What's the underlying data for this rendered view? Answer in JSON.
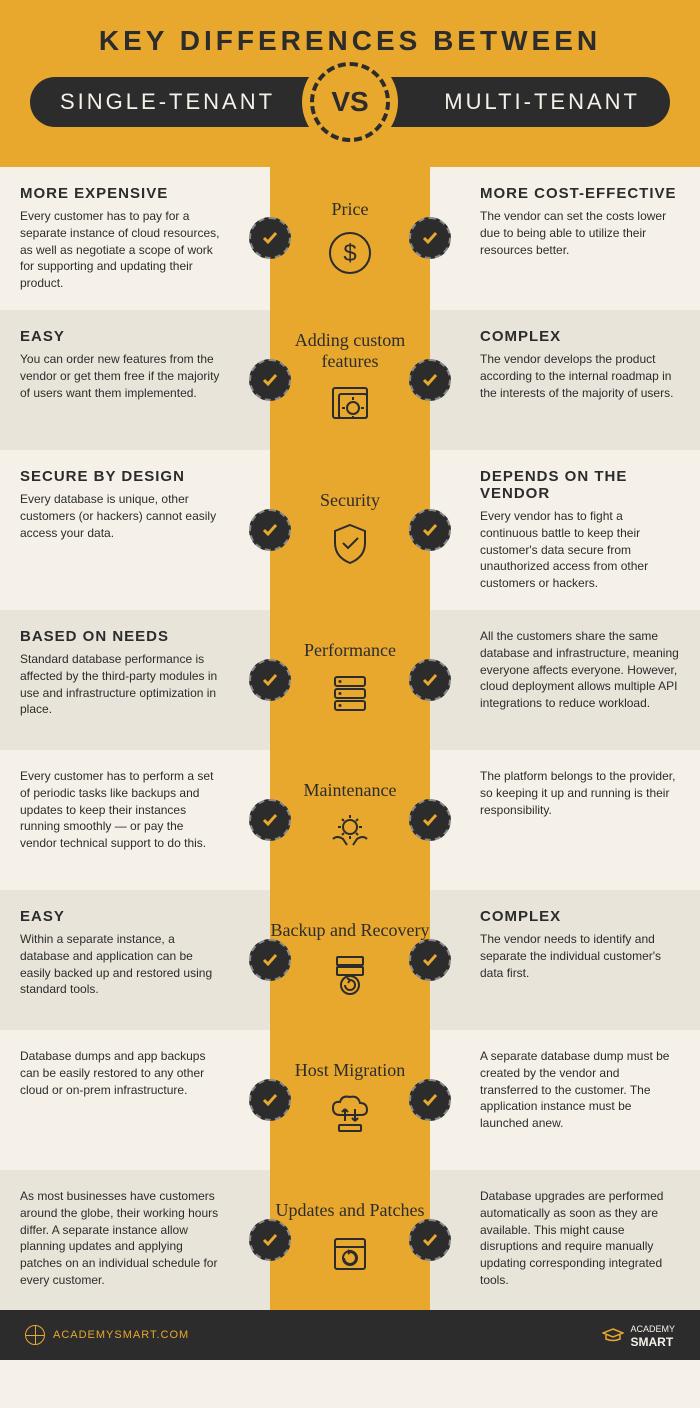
{
  "type": "infographic",
  "colors": {
    "accent": "#e8a82e",
    "dark": "#2c2c2c",
    "bg": "#f5f1e8",
    "alt": "#e8e4da"
  },
  "title": "KEY DIFFERENCES BETWEEN",
  "left_label": "SINGLE-TENANT",
  "right_label": "MULTI-TENANT",
  "vs": "VS",
  "rows": [
    {
      "category": "Price",
      "icon": "dollar",
      "left_title": "MORE EXPENSIVE",
      "left_text": "Every customer has to pay for a separate instance of cloud resources, as well as negotiate a scope of work for supporting and updating their product.",
      "right_title": "MORE COST-EFFECTIVE",
      "right_text": "The vendor can set the costs lower due to being able to utilize their resources better."
    },
    {
      "category": "Adding custom features",
      "icon": "gear-window",
      "left_title": "EASY",
      "left_text": "You can order new features from the vendor or get them free if the majority of users want them implemented.",
      "right_title": "COMPLEX",
      "right_text": "The vendor develops the product according to the internal roadmap in the interests of the majority of users."
    },
    {
      "category": "Security",
      "icon": "shield",
      "left_title": "SECURE BY DESIGN",
      "left_text": "Every database is unique, other customers (or hackers) cannot easily access your data.",
      "right_title": "DEPENDS ON THE VENDOR",
      "right_text": "Every vendor has to fight a continuous battle to keep their customer's data secure from unauthorized access from other customers or hackers."
    },
    {
      "category": "Performance",
      "icon": "server",
      "left_title": "BASED ON NEEDS",
      "left_text": "Standard database performance is affected by the third-party modules in use and infrastructure optimization in place.",
      "right_title": "",
      "right_text": "All the customers share the same database and infrastructure, meaning everyone affects everyone. However, cloud deployment allows multiple API integrations to reduce workload."
    },
    {
      "category": "Maintenance",
      "icon": "hands-gear",
      "left_title": "",
      "left_text": "Every customer has to perform a set of periodic tasks like backups and updates to keep their instances running smoothly — or pay the vendor technical support to do this.",
      "right_title": "",
      "right_text": "The platform belongs to the provider, so keeping it up and running is their responsibility."
    },
    {
      "category": "Backup and Recovery",
      "icon": "db-restore",
      "left_title": "EASY",
      "left_text": "Within a separate instance, a database and application can be easily backed up and restored using standard tools.",
      "right_title": "COMPLEX",
      "right_text": "The vendor needs to identify and separate the individual customer's data first."
    },
    {
      "category": "Host Migration",
      "icon": "cloud-arrows",
      "left_title": "",
      "left_text": "Database dumps and app backups can be easily restored to any other cloud or on-prem infrastructure.",
      "right_title": "",
      "right_text": "A separate database dump must be created by the vendor and transferred to the customer. The application instance must be launched anew."
    },
    {
      "category": "Updates and Patches",
      "icon": "update-window",
      "left_title": "",
      "left_text": "As most businesses have customers around the globe, their working hours differ. A separate instance allow planning updates and applying patches on an individual schedule for every customer.",
      "right_title": "",
      "right_text": "Database upgrades are performed automatically as soon as they are available. This might cause disruptions and require manually updating corresponding integrated tools."
    }
  ],
  "footer": {
    "url": "ACADEMYSMART.COM",
    "logo_prefix": "ACADEMY",
    "logo_main": "SMART"
  }
}
